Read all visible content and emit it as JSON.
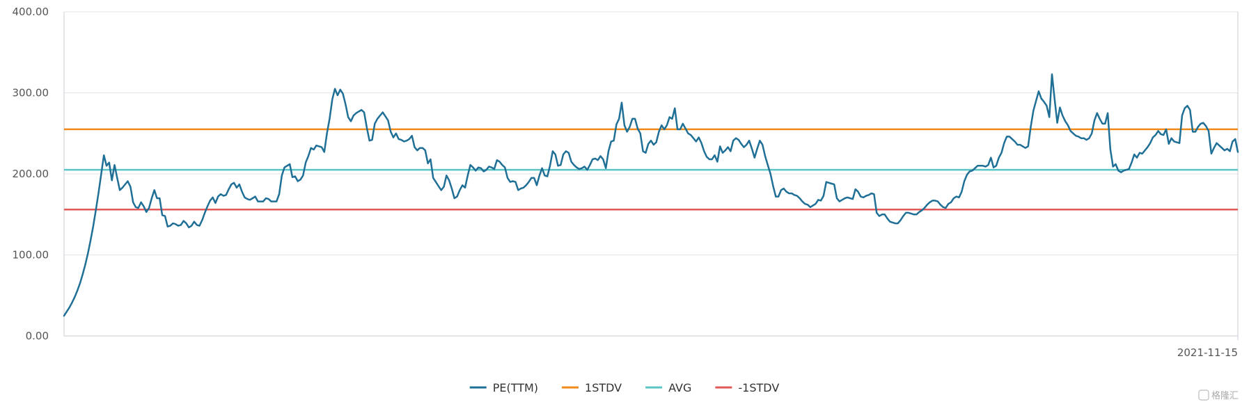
{
  "chart_data": {
    "type": "line",
    "title": "",
    "xlabel": "",
    "ylabel": "",
    "ylim": [
      0,
      400
    ],
    "y_ticks": [
      "0.00",
      "100.00",
      "200.00",
      "300.00",
      "400.00"
    ],
    "x_tick_labels": [
      "2021-11-15"
    ],
    "x_end_label": "2021-11-15",
    "grid": "horizontal",
    "legend_placement": "bottom-center",
    "series": [
      {
        "name": "PE(TTM)",
        "color": "#1f6f96",
        "values": [
          25,
          30,
          35,
          41,
          48,
          56,
          65,
          76,
          88,
          102,
          118,
          136,
          156,
          177,
          200,
          223,
          210,
          214,
          192,
          211,
          195,
          180,
          183,
          187,
          191,
          184,
          165,
          159,
          158,
          165,
          160,
          153,
          158,
          170,
          180,
          170,
          170,
          149,
          148,
          135,
          136,
          139,
          138,
          136,
          137,
          142,
          139,
          134,
          136,
          141,
          137,
          136,
          143,
          152,
          160,
          167,
          171,
          164,
          172,
          175,
          173,
          174,
          181,
          187,
          189,
          183,
          187,
          178,
          171,
          169,
          168,
          170,
          172,
          166,
          166,
          166,
          170,
          169,
          166,
          166,
          166,
          175,
          198,
          208,
          210,
          212,
          196,
          197,
          191,
          193,
          198,
          214,
          222,
          232,
          230,
          235,
          234,
          233,
          227,
          250,
          268,
          292,
          305,
          297,
          304,
          299,
          286,
          270,
          265,
          272,
          275,
          277,
          279,
          276,
          257,
          241,
          242,
          262,
          268,
          272,
          276,
          271,
          266,
          252,
          245,
          250,
          243,
          242,
          240,
          241,
          243,
          247,
          233,
          229,
          232,
          232,
          229,
          213,
          218,
          195,
          190,
          185,
          180,
          184,
          198,
          192,
          182,
          170,
          172,
          180,
          186,
          183,
          198,
          211,
          208,
          204,
          208,
          207,
          203,
          205,
          209,
          208,
          206,
          217,
          215,
          211,
          208,
          195,
          190,
          191,
          190,
          180,
          182,
          183,
          186,
          190,
          195,
          195,
          186,
          198,
          207,
          198,
          197,
          210,
          228,
          224,
          210,
          211,
          224,
          228,
          226,
          215,
          211,
          208,
          206,
          207,
          209,
          205,
          211,
          218,
          219,
          217,
          222,
          218,
          207,
          228,
          240,
          241,
          261,
          268,
          288,
          260,
          252,
          258,
          268,
          268,
          256,
          250,
          228,
          226,
          237,
          241,
          236,
          239,
          252,
          260,
          255,
          260,
          270,
          268,
          281,
          255,
          255,
          262,
          256,
          250,
          248,
          244,
          240,
          245,
          238,
          228,
          221,
          218,
          218,
          223,
          215,
          234,
          226,
          229,
          233,
          228,
          241,
          244,
          242,
          237,
          233,
          236,
          241,
          231,
          220,
          231,
          241,
          236,
          222,
          211,
          200,
          185,
          172,
          172,
          180,
          182,
          178,
          176,
          176,
          174,
          173,
          170,
          166,
          163,
          162,
          159,
          161,
          163,
          168,
          167,
          173,
          190,
          189,
          188,
          187,
          170,
          166,
          168,
          170,
          171,
          170,
          169,
          181,
          178,
          172,
          171,
          173,
          174,
          176,
          175,
          152,
          148,
          150,
          150,
          145,
          141,
          140,
          139,
          139,
          143,
          148,
          152,
          152,
          151,
          150,
          150,
          153,
          155,
          158,
          162,
          165,
          167,
          167,
          166,
          162,
          159,
          158,
          163,
          165,
          170,
          172,
          171,
          178,
          191,
          199,
          203,
          204,
          207,
          210,
          210,
          210,
          209,
          211,
          220,
          208,
          210,
          220,
          226,
          238,
          246,
          246,
          243,
          240,
          236,
          236,
          234,
          232,
          234,
          258,
          278,
          290,
          302,
          293,
          289,
          284,
          270,
          323,
          292,
          263,
          282,
          272,
          265,
          260,
          253,
          250,
          247,
          246,
          244,
          244,
          242,
          244,
          250,
          266,
          275,
          268,
          262,
          262,
          275,
          230,
          209,
          212,
          204,
          202,
          204,
          205,
          206,
          214,
          224,
          220,
          226,
          225,
          229,
          233,
          238,
          245,
          248,
          253,
          249,
          248,
          255,
          237,
          244,
          240,
          239,
          238,
          272,
          281,
          284,
          279,
          252,
          252,
          258,
          262,
          263,
          259,
          253,
          225,
          232,
          238,
          235,
          232,
          229,
          231,
          228,
          240,
          243,
          227
        ]
      },
      {
        "name": "1STDV",
        "color": "#f08a1a",
        "value": 255
      },
      {
        "name": "AVG",
        "color": "#5bc4c4",
        "value": 205
      },
      {
        "name": "-1STDV",
        "color": "#e05a5a",
        "value": 156
      }
    ],
    "watermark": "格隆汇"
  }
}
